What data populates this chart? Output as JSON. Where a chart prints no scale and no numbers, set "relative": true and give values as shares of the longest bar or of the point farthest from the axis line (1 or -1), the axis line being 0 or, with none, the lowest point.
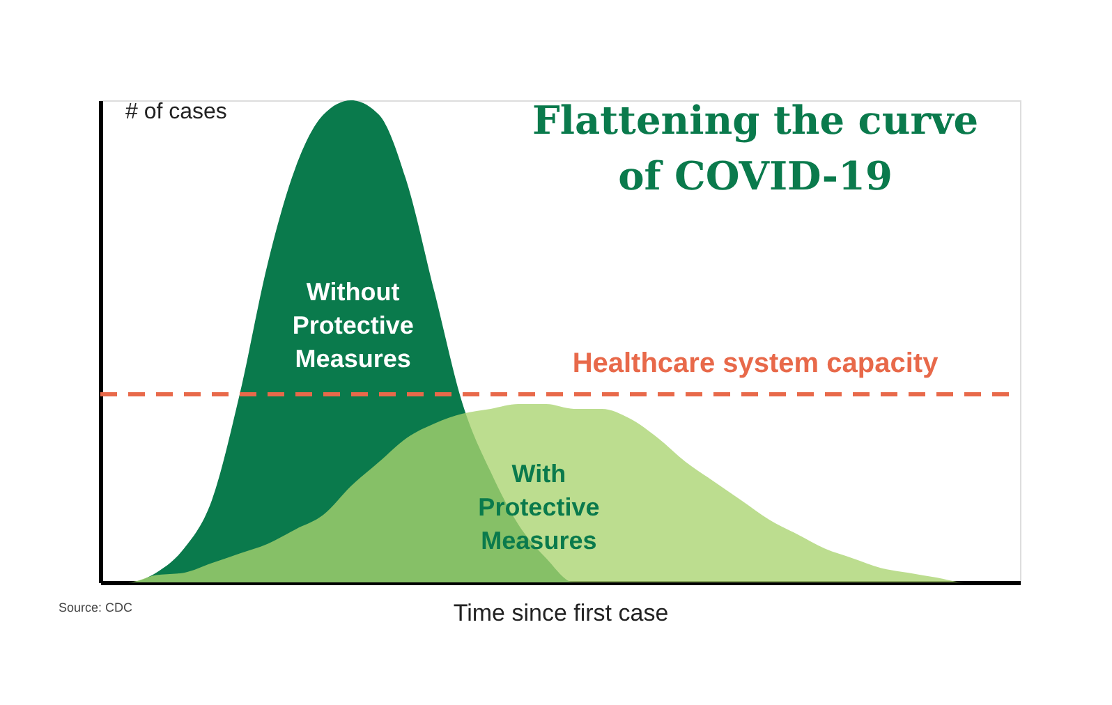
{
  "chart_data": {
    "type": "area",
    "relative": true,
    "title": "Flattening the curve of COVID-19",
    "xlabel": "Time since first case",
    "ylabel": "# of cases",
    "categories": [
      null,
      null,
      null,
      null,
      null,
      null,
      null,
      null,
      null,
      null,
      null,
      null,
      null,
      null,
      null,
      null,
      null,
      null,
      null,
      null,
      null,
      null,
      null,
      null,
      null,
      null,
      null,
      null,
      null,
      null,
      null,
      null,
      null,
      null
    ],
    "series": [
      {
        "name": "Without Protective Measures",
        "color": "#0a7a4c",
        "values": [
          0,
          0,
          0.02,
          0.07,
          0.17,
          0.39,
          0.66,
          0.86,
          0.97,
          1.0,
          0.97,
          0.83,
          0.6,
          0.37,
          0.23,
          0.12,
          0.05,
          0,
          0,
          0,
          0,
          0,
          0,
          0,
          0,
          0,
          0,
          0,
          0,
          0,
          0,
          0,
          0,
          0
        ]
      },
      {
        "name": "With Protective Measures",
        "color": "#a9d46f",
        "values": [
          0,
          0,
          0.015,
          0.02,
          0.04,
          0.06,
          0.08,
          0.11,
          0.14,
          0.2,
          0.25,
          0.3,
          0.33,
          0.35,
          0.36,
          0.37,
          0.37,
          0.36,
          0.36,
          0.34,
          0.3,
          0.25,
          0.21,
          0.17,
          0.13,
          0.1,
          0.07,
          0.05,
          0.03,
          0.02,
          0.01,
          0,
          0,
          0
        ]
      }
    ],
    "ref_lines": [
      {
        "axis": "y",
        "value": 0.39,
        "label": "Healthcare system capacity",
        "color": "#e8694a",
        "line_style": "dashed"
      }
    ],
    "annotations": [
      "Source: CDC"
    ],
    "tick_labels": false,
    "grid": false
  }
}
